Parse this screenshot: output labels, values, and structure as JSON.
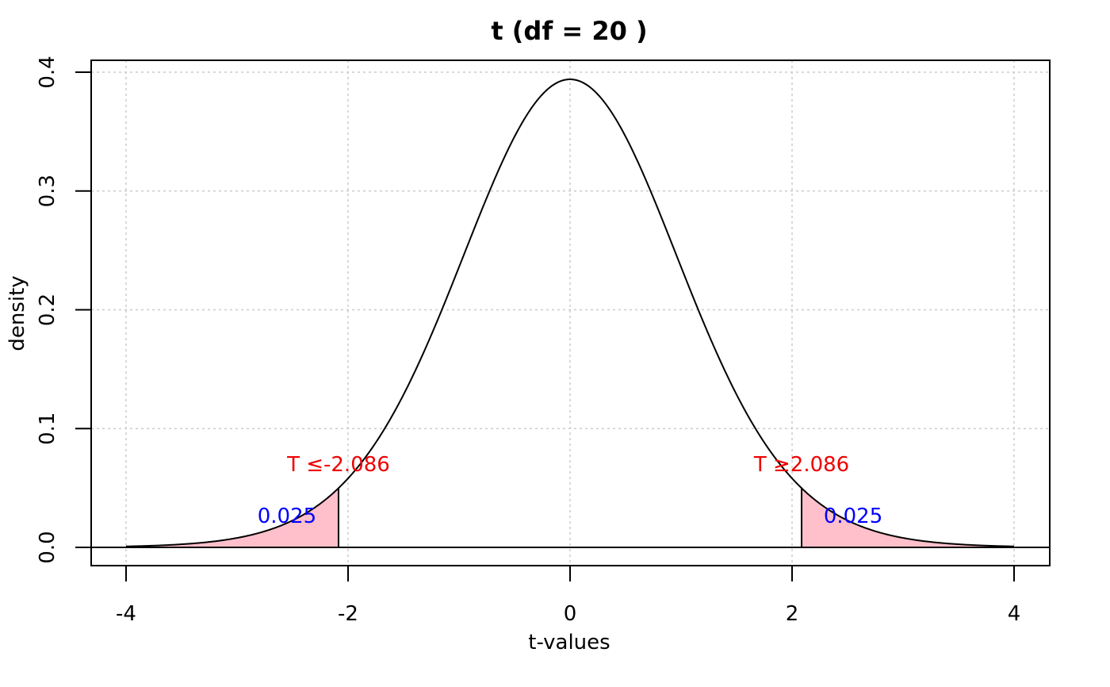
{
  "chart_data": {
    "type": "area",
    "title": "t (df = 20 )",
    "xlabel": "t-values",
    "ylabel": "density",
    "df": 20,
    "xlim": [
      -4,
      4
    ],
    "ylim": [
      0,
      0.4
    ],
    "x_ticks": [
      -4,
      -2,
      0,
      2,
      4
    ],
    "y_ticks": [
      0.0,
      0.1,
      0.2,
      0.3,
      0.4
    ],
    "x_tick_labels": [
      "-4",
      "-2",
      "0",
      "2",
      "4"
    ],
    "y_tick_labels": [
      "0.0",
      "0.1",
      "0.2",
      "0.3",
      "0.4"
    ],
    "grid": true,
    "critical_value": 2.086,
    "shaded_regions": [
      {
        "from": -4,
        "to": -2.086,
        "probability": "0.025",
        "label": "T ≤-2.086"
      },
      {
        "from": 2.086,
        "to": 4,
        "probability": "0.025",
        "label": "T ≥2.086"
      }
    ],
    "colors": {
      "curve": "#000000",
      "fill": "#FFC0CB",
      "label": "#EE0000",
      "probability": "#0000FF",
      "grid": "#CCCCCC"
    }
  }
}
